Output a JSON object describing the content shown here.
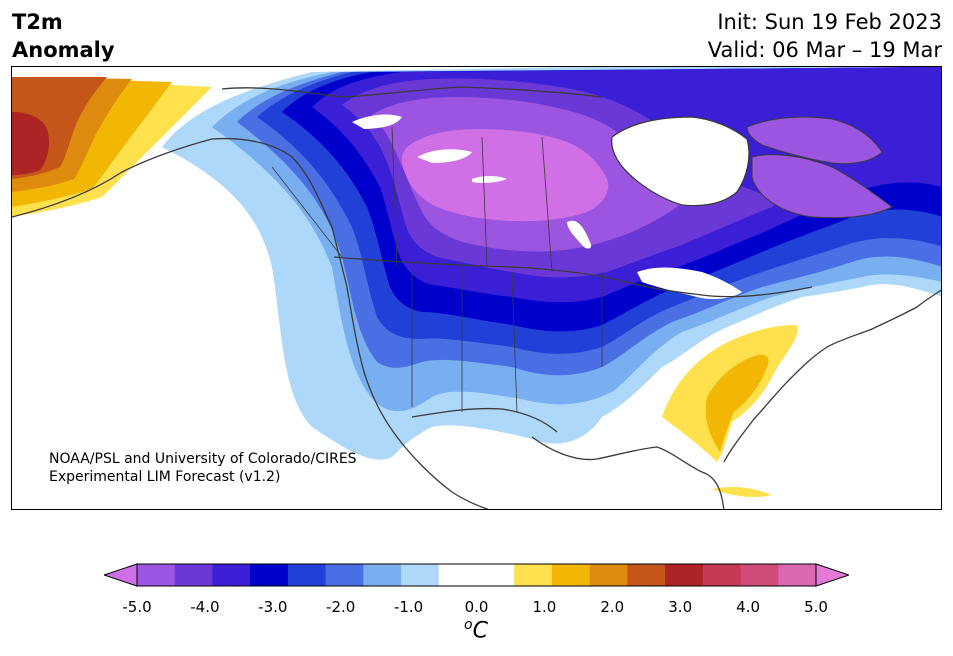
{
  "header": {
    "title_line1": "T2m",
    "title_line2": "Anomaly",
    "init_text": "Init: Sun 19 Feb 2023",
    "valid_text": "Valid: 06 Mar – 19 Mar"
  },
  "map": {
    "region": "North America",
    "credit_line1": "NOAA/PSL and University of Colorado/CIRES",
    "credit_line2": "Experimental LIM Forecast (v1.2)"
  },
  "colorbar": {
    "unit_base": "C",
    "unit_sup": "o",
    "ticks": [
      "-5.0",
      "-4.0",
      "-3.0",
      "-2.0",
      "-1.0",
      "0.0",
      "1.0",
      "2.0",
      "3.0",
      "4.0",
      "5.0"
    ],
    "tick_values": [
      -5,
      -4,
      -3,
      -2,
      -1,
      0,
      1,
      2,
      3,
      4,
      5
    ],
    "colors": [
      "#d06fe6",
      "#9b55e0",
      "#6b38d8",
      "#3a1fd6",
      "#0000cc",
      "#2140d8",
      "#4a6fe4",
      "#79aef0",
      "#aed8fa",
      "#ffffff",
      "#ffffff",
      "#ffe14d",
      "#f2b705",
      "#de8a0e",
      "#c4561a",
      "#ae2424",
      "#c43a55",
      "#cf4c7a",
      "#db66b1",
      "#e678d8"
    ]
  }
}
